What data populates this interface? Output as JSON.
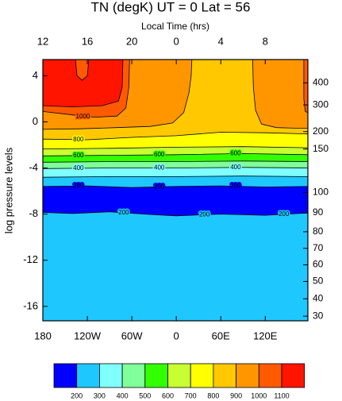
{
  "chart_data": {
    "type": "contour",
    "title": "TN (degK) UT = 0 Lat = 56",
    "x2_label": "Local Time (hrs)",
    "y_label": "log pressure levels",
    "xlim": [
      -180,
      177.5
    ],
    "ylim": [
      -17.25,
      5.4
    ],
    "xticks": [
      {
        "value": -180,
        "label": "180"
      },
      {
        "value": -120,
        "label": "120W"
      },
      {
        "value": -60,
        "label": "60W"
      },
      0,
      {
        "value": 60,
        "label": "60E"
      },
      {
        "value": 120,
        "label": "120E"
      }
    ],
    "x2ticks": [
      12,
      16,
      20,
      0,
      4,
      8
    ],
    "yticks": [
      4,
      0,
      -4,
      -8,
      -12,
      -16
    ],
    "y2ticks": [
      {
        "value": 400,
        "at": 3.38
      },
      {
        "value": 300,
        "at": 1.47
      },
      {
        "value": 200,
        "at": -0.85
      },
      {
        "value": 150,
        "at": -2.36
      },
      {
        "value": 100,
        "at": -6.12
      },
      {
        "value": 90,
        "at": -7.89
      },
      {
        "value": 80,
        "at": -9.53
      },
      {
        "value": 70,
        "at": -10.97
      },
      {
        "value": 60,
        "at": -12.4
      },
      {
        "value": 50,
        "at": -13.84
      },
      {
        "value": 40,
        "at": -15.34
      },
      {
        "value": 30,
        "at": -16.85
      }
    ],
    "background_fill": 7,
    "contours": [
      {
        "level": 900,
        "fill": 8,
        "closed": true,
        "lon": [
          -180,
          -130,
          -80,
          -35,
          -5,
          10,
          17,
          20,
          21,
          -180
        ],
        "lev": [
          -0.65,
          -0.6,
          -0.5,
          -0.4,
          -0.1,
          0.8,
          2.5,
          4,
          5.4,
          5.4
        ]
      },
      {
        "level": 900,
        "fill": 8,
        "closed": true,
        "lon": [
          103,
          104,
          107,
          115,
          135,
          160,
          177.5,
          177.5
        ],
        "lev": [
          5.4,
          3,
          1,
          -0.2,
          -0.5,
          -0.55,
          -0.55,
          5.4
        ]
      },
      {
        "level": 1000,
        "fill": 9,
        "closed": true,
        "lon": [
          -180,
          -140,
          -110,
          -80,
          -68,
          -64,
          -63,
          -180
        ],
        "lev": [
          0.9,
          0.6,
          0.4,
          0.5,
          1.2,
          3,
          5.4,
          5.4
        ]
      },
      {
        "level": 1000,
        "fill": 9,
        "closed": true,
        "lon": [
          172,
          172,
          174,
          177.5,
          177.5
        ],
        "lev": [
          5.4,
          2,
          0.9,
          0.8,
          5.4
        ]
      },
      {
        "level": 1100,
        "fill": 10,
        "closed": true,
        "lon": [
          -180,
          -140,
          -100,
          -78,
          -73,
          -72,
          -118,
          -120,
          -127,
          -134,
          -136,
          -180
        ],
        "lev": [
          1.4,
          1.3,
          1.4,
          1.8,
          3,
          5.4,
          5.4,
          4,
          3.6,
          4,
          5.4,
          5.4
        ]
      },
      {
        "level": 800,
        "fill": 6,
        "closed": false,
        "lon": [
          -180,
          -120,
          -60,
          0,
          60,
          120,
          177.5
        ],
        "lev": [
          -1.5,
          -1.55,
          -1.35,
          -1.2,
          -0.9,
          -0.95,
          -1.05
        ]
      },
      {
        "level": 700,
        "fill": 5,
        "closed": false,
        "lon": [
          -180,
          -90,
          0,
          90,
          177.5
        ],
        "lev": [
          -2.35,
          -2.3,
          -2.2,
          -2.15,
          -2.25
        ]
      },
      {
        "level": 600,
        "fill": 4,
        "closed": false,
        "lon": [
          -180,
          -90,
          0,
          90,
          177.5
        ],
        "lev": [
          -2.95,
          -2.9,
          -2.85,
          -2.75,
          -2.85
        ]
      },
      {
        "level": 500,
        "fill": 3,
        "closed": false,
        "lon": [
          -180,
          -90,
          0,
          90,
          177.5
        ],
        "lev": [
          -3.5,
          -3.45,
          -3.45,
          -3.4,
          -3.45
        ]
      },
      {
        "level": 400,
        "fill": 2,
        "closed": false,
        "lon": [
          -180,
          -90,
          0,
          90,
          177.5
        ],
        "lev": [
          -4.05,
          -4.0,
          -4.0,
          -3.95,
          -4.0
        ]
      },
      {
        "level": 300,
        "fill": 1,
        "closed": false,
        "lon": [
          -180,
          -90,
          0,
          90,
          177.5
        ],
        "lev": [
          -4.8,
          -4.75,
          -4.75,
          -4.7,
          -4.75
        ]
      },
      {
        "level": 200,
        "fill": 0,
        "closed": false,
        "lon": [
          -180,
          -120,
          -60,
          0,
          60,
          120,
          177.5
        ],
        "lev": [
          -5.6,
          -5.55,
          -5.7,
          -5.6,
          -5.55,
          -5.65,
          -5.6
        ]
      },
      {
        "level": 200,
        "fill": 1,
        "closed": false,
        "lon": [
          -180,
          -140,
          -90,
          -30,
          0,
          60,
          120,
          177.5
        ],
        "lev": [
          -7.85,
          -7.95,
          -7.8,
          -8.05,
          -8.15,
          -8.0,
          -8.1,
          -7.9
        ]
      }
    ],
    "colorbar": {
      "colors": [
        "#0000ff",
        "#1ec8ff",
        "#80ffff",
        "#80ff9a",
        "#32ff00",
        "#c8ff32",
        "#ffff00",
        "#ffc800",
        "#ff9600",
        "#ff5a00",
        "#ff1400"
      ],
      "levels": [
        200,
        300,
        400,
        500,
        600,
        700,
        800,
        900,
        1000,
        1100
      ]
    }
  }
}
